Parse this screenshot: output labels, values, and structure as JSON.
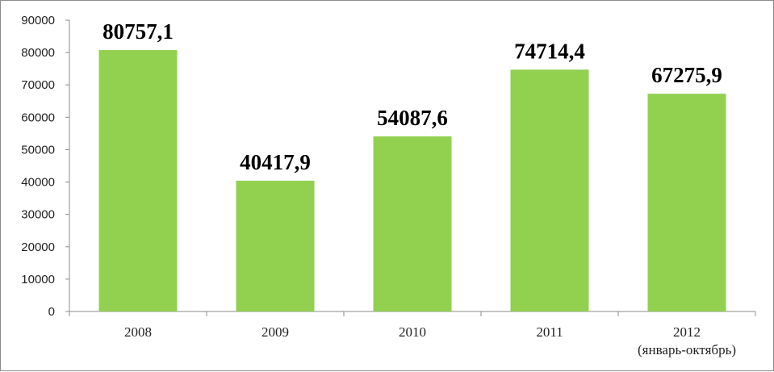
{
  "chart_data": {
    "type": "bar",
    "categories": [
      "2008",
      "2009",
      "2010",
      "2011",
      "2012"
    ],
    "category_sublabels": [
      "",
      "",
      "",
      "",
      "(январь-октябрь)"
    ],
    "values": [
      80757.1,
      40417.9,
      54087.6,
      74714.4,
      67275.9
    ],
    "value_labels": [
      "80757,1",
      "40417,9",
      "54087,6",
      "74714,4",
      "67275,9"
    ],
    "y_ticks": [
      "0",
      "10000",
      "20000",
      "30000",
      "40000",
      "50000",
      "60000",
      "70000",
      "80000",
      "90000"
    ],
    "ylim": [
      0,
      90000
    ],
    "bar_color": "#92d050",
    "grid": false,
    "legend": "none",
    "title": "",
    "xlabel": "",
    "ylabel": ""
  }
}
